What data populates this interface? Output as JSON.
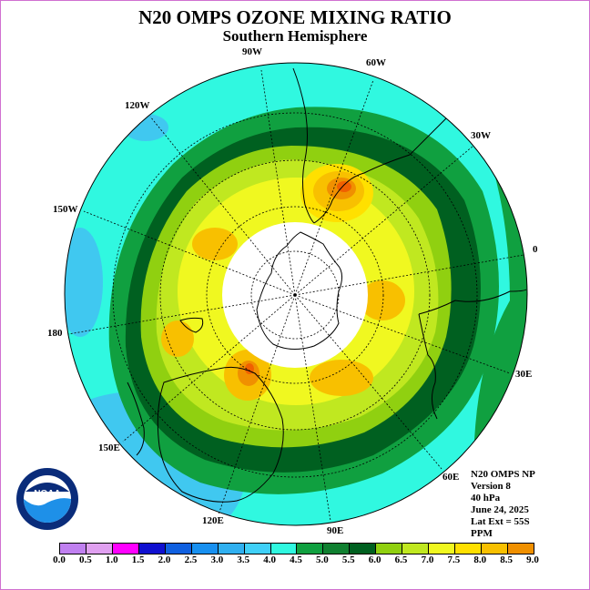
{
  "title": "N20 OMPS OZONE MIXING RATIO",
  "subtitle": "Southern Hemisphere",
  "lon_labels": {
    "l90w": "90W",
    "l60w": "60W",
    "l120w": "120W",
    "l30w": "30W",
    "l150w": "150W",
    "l0": "0",
    "l180": "180",
    "l30e": "30E",
    "l150e": "150E",
    "l60e": "60E",
    "l120e": "120E",
    "l90e": "90E"
  },
  "info": {
    "instrument": "N20 OMPS NP",
    "version": "Version 8",
    "level": "40 hPa",
    "date": "June 24, 2025",
    "lat_ext": "Lat Ext = 55S",
    "units": "PPM"
  },
  "logo_text": "NOAA",
  "colorbar": {
    "colors": [
      "#c080f0",
      "#e0a0f0",
      "#ff00ff",
      "#1010d0",
      "#1060e0",
      "#1890f0",
      "#30b0f0",
      "#40d0f8",
      "#30f8e0",
      "#10a040",
      "#108030",
      "#006020",
      "#90d010",
      "#c0e820",
      "#f0f820",
      "#ffe000",
      "#f8c000",
      "#f09000",
      "#f06000",
      "#e80000",
      "#806040"
    ],
    "ticks": [
      "0.0",
      "0.5",
      "1.0",
      "1.5",
      "2.0",
      "2.5",
      "3.0",
      "3.5",
      "4.0",
      "4.5",
      "5.0",
      "5.5",
      "6.0",
      "6.5",
      "7.0",
      "7.5",
      "8.0",
      "8.5",
      "9.0"
    ]
  }
}
